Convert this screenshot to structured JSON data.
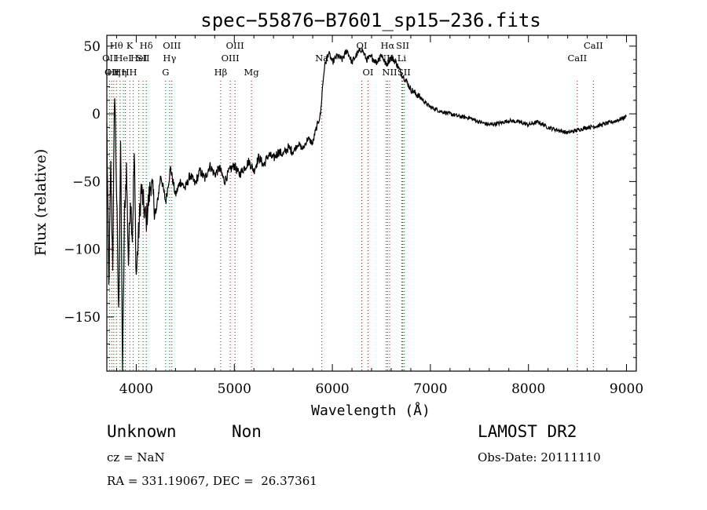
{
  "chart_data": {
    "type": "line",
    "title": "spec−55876−B7601_sp15−236.fits",
    "xlabel": "Wavelength (Å)",
    "ylabel": "Flux (relative)",
    "xlim": [
      3700,
      9100
    ],
    "ylim": [
      -190,
      58
    ],
    "xticks": [
      4000,
      5000,
      6000,
      7000,
      8000,
      9000
    ],
    "yticks": [
      50,
      0,
      -50,
      -100,
      -150
    ],
    "x_minor_step": 200,
    "y_minor_step": 10,
    "grid": false,
    "line_color": "#000000",
    "marker_color": "#cc0000",
    "series": [
      {
        "x": [
          3700,
          3720,
          3740,
          3760,
          3780,
          3800,
          3820,
          3840,
          3860,
          3880,
          3900,
          3920,
          3940,
          3960,
          3980,
          4000,
          4050,
          4100,
          4150,
          4200,
          4250,
          4300,
          4350,
          4400,
          4450,
          4500,
          4550,
          4600,
          4650,
          4700,
          4750,
          4800,
          4850,
          4900,
          4950,
          5000,
          5050,
          5100,
          5150,
          5200,
          5250,
          5300,
          5350,
          5400,
          5450,
          5500,
          5550,
          5600,
          5650,
          5700,
          5750,
          5800,
          5820,
          5840,
          5860,
          5880,
          5900,
          5920,
          5940,
          5960,
          5980,
          6000,
          6050,
          6100,
          6150,
          6200,
          6250,
          6300,
          6350,
          6400,
          6450,
          6500,
          6550,
          6600,
          6650,
          6700,
          6750,
          6800,
          6850,
          6900,
          6950,
          7000,
          7100,
          7200,
          7300,
          7400,
          7500,
          7600,
          7700,
          7800,
          7900,
          8000,
          8100,
          8200,
          8300,
          8400,
          8500,
          8600,
          8700,
          8800,
          8900,
          9000
        ],
        "y": [
          -10,
          -130,
          -40,
          -110,
          20,
          -60,
          -150,
          -20,
          -190,
          -75,
          -40,
          -110,
          -60,
          -90,
          -30,
          -120,
          -55,
          -80,
          -50,
          -75,
          -45,
          -65,
          -40,
          -60,
          -50,
          -55,
          -45,
          -52,
          -42,
          -48,
          -38,
          -45,
          -40,
          -50,
          -42,
          -38,
          -45,
          -40,
          -35,
          -42,
          -32,
          -38,
          -30,
          -33,
          -28,
          -30,
          -25,
          -28,
          -22,
          -26,
          -18,
          -22,
          -15,
          -10,
          -5,
          0,
          20,
          35,
          40,
          45,
          42,
          38,
          43,
          40,
          47,
          38,
          44,
          48,
          40,
          42,
          38,
          44,
          36,
          42,
          38,
          30,
          25,
          18,
          15,
          12,
          8,
          5,
          2,
          0,
          -2,
          -3,
          -6,
          -8,
          -7,
          -5,
          -6,
          -8,
          -6,
          -10,
          -12,
          -14,
          -12,
          -10,
          -9,
          -7,
          -5,
          -2
        ]
      }
    ],
    "line_markers": [
      {
        "x": 3727,
        "label": "OII",
        "row": 2
      },
      {
        "x": 3750,
        "label": "OII",
        "row": 3
      },
      {
        "x": 3771,
        "label": "Hη",
        "row": 3
      },
      {
        "x": 3798,
        "label": "Hθ",
        "row": 1
      },
      {
        "x": 3835,
        "label": "Hη",
        "row": 3
      },
      {
        "x": 3869,
        "label": "HeI",
        "row": 2
      },
      {
        "x": 3889,
        "label": "H",
        "row": 3
      },
      {
        "x": 3934,
        "label": "K",
        "row": 1
      },
      {
        "x": 3969,
        "label": "H",
        "row": 3
      },
      {
        "x": 4026,
        "label": "HeI",
        "row": 2
      },
      {
        "x": 4069,
        "label": "SII",
        "row": 2
      },
      {
        "x": 4102,
        "label": "Hδ",
        "row": 1
      },
      {
        "x": 4300,
        "label": "G",
        "row": 3
      },
      {
        "x": 4340,
        "label": "Hγ",
        "row": 2
      },
      {
        "x": 4363,
        "label": "OIII",
        "row": 1
      },
      {
        "x": 4861,
        "label": "Hβ",
        "row": 3
      },
      {
        "x": 4959,
        "label": "OIII",
        "row": 2
      },
      {
        "x": 5007,
        "label": "OIII",
        "row": 1
      },
      {
        "x": 5175,
        "label": "Mg",
        "row": 3
      },
      {
        "x": 5893,
        "label": "Na",
        "row": 2
      },
      {
        "x": 6300,
        "label": "OI",
        "row": 1
      },
      {
        "x": 6364,
        "label": "OI",
        "row": 3
      },
      {
        "x": 6548,
        "label": "NII",
        "row": 2
      },
      {
        "x": 6563,
        "label": "Hα",
        "row": 1
      },
      {
        "x": 6584,
        "label": "NII",
        "row": 3
      },
      {
        "x": 6708,
        "label": "Li",
        "row": 2
      },
      {
        "x": 6717,
        "label": "SII",
        "row": 1
      },
      {
        "x": 6731,
        "label": "SII",
        "row": 3
      },
      {
        "x": 8498,
        "label": "CaII",
        "row": 2
      },
      {
        "x": 8662,
        "label": "CaII",
        "row": 1
      }
    ]
  },
  "info": {
    "class": "Unknown",
    "subclass": "Non",
    "survey": "LAMOST DR2",
    "cz": "cz = NaN",
    "obs_date": "Obs-Date: 20111110",
    "coords": "RA = 331.19067, DEC =  26.37361"
  }
}
